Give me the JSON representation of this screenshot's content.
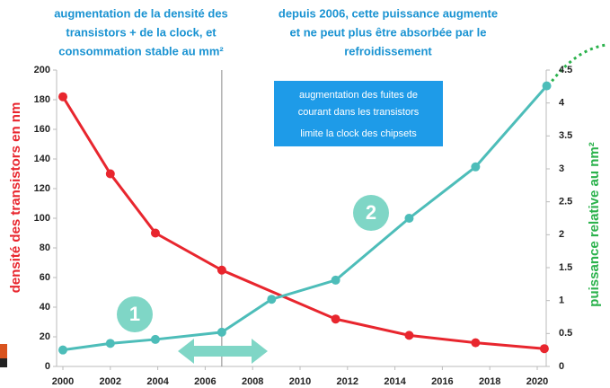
{
  "chart_data": {
    "type": "line",
    "annotations": {
      "top_left": [
        "augmentation de la densité des",
        "transistors + de la clock, et",
        "consommation stable au mm²"
      ],
      "top_right": [
        "depuis 2006, cette puissance augmente",
        "et ne peut plus être absorbée par le",
        "refroidissement"
      ],
      "box": [
        "augmentation des fuites de",
        "courant dans les transistors",
        "limite la clock des chipsets"
      ],
      "markers": [
        "1",
        "2"
      ]
    },
    "ylabel": "densité des transistors en nm",
    "y2label": "puissance relative au nm²",
    "xlim": [
      2000,
      2020
    ],
    "xticks": [
      2000,
      2002,
      2004,
      2006,
      2008,
      2010,
      2012,
      2014,
      2016,
      2018,
      2020
    ],
    "ylim": [
      0,
      200
    ],
    "yticks": [
      0,
      20,
      40,
      60,
      80,
      100,
      120,
      140,
      160,
      180,
      200
    ],
    "y2lim": [
      0,
      4.5
    ],
    "y2ticks": [
      0,
      0.5,
      1,
      1.5,
      2,
      2.5,
      3,
      3.5,
      4,
      4.5
    ],
    "reference_line_x": 2006.7,
    "series": [
      {
        "name": "densité des transistors",
        "color": "#e8262e",
        "axis": "y",
        "x": [
          2000,
          2002,
          2003.9,
          2006.7,
          2011.5,
          2014.6,
          2017.4,
          2020.3
        ],
        "values": [
          182,
          130,
          90,
          65,
          32,
          21,
          16,
          12
        ]
      },
      {
        "name": "puissance relative",
        "color": "#4dbdb9",
        "axis": "y2",
        "x": [
          2000,
          2002,
          2003.9,
          2006.7,
          2008.8,
          2011.5,
          2014.6,
          2017.4,
          2020.4
        ],
        "values": [
          0.25,
          0.35,
          0.41,
          0.52,
          1.02,
          1.31,
          2.25,
          3.03,
          4.26
        ]
      }
    ]
  }
}
